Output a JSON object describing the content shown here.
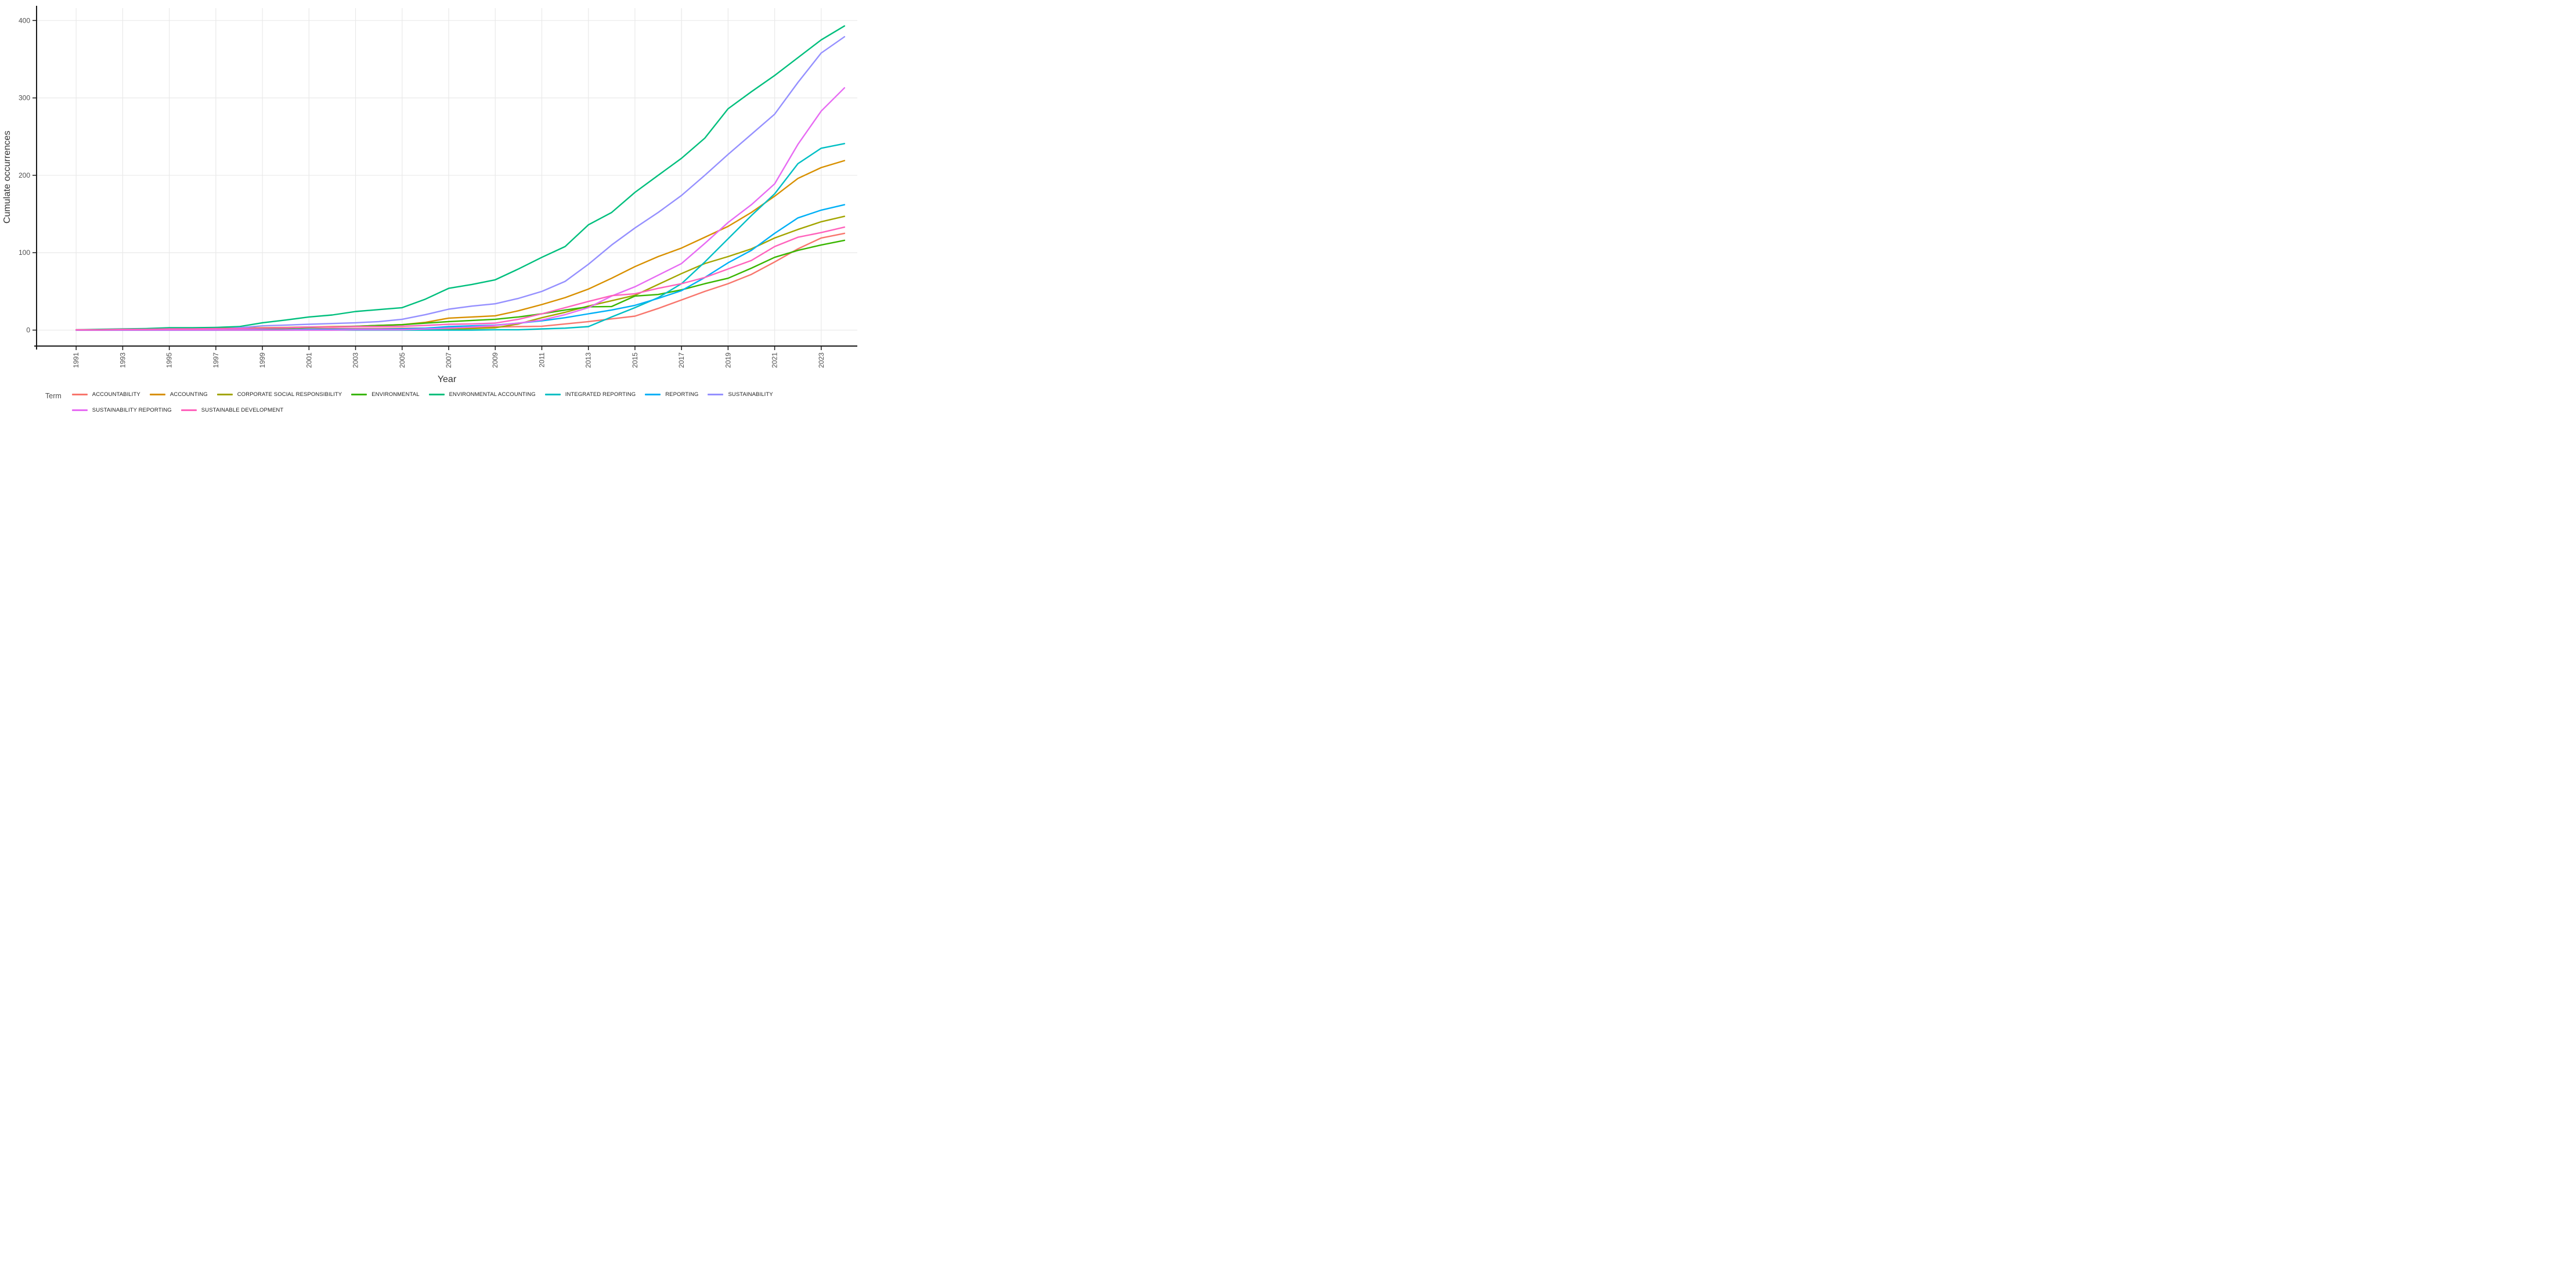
{
  "page": {
    "background": "#ffffff"
  },
  "chart_data": {
    "type": "line",
    "title": "",
    "xlabel": "Year",
    "ylabel": "Cumulate occurrences",
    "legend_title": "Term",
    "legend_position": "bottom",
    "grid": true,
    "axis_color": "#1a1a1a",
    "grid_color": "#e9e9e9",
    "tick_label_color": "#4d4d4d",
    "x": [
      1991,
      1992,
      1993,
      1994,
      1995,
      1996,
      1997,
      1998,
      1999,
      2000,
      2001,
      2002,
      2003,
      2004,
      2005,
      2006,
      2007,
      2008,
      2009,
      2010,
      2011,
      2012,
      2013,
      2014,
      2015,
      2016,
      2017,
      2018,
      2019,
      2020,
      2021,
      2022,
      2023,
      2024
    ],
    "x_ticks": [
      1991,
      1993,
      1995,
      1997,
      1999,
      2001,
      2003,
      2005,
      2007,
      2009,
      2011,
      2013,
      2015,
      2017,
      2019,
      2021,
      2023
    ],
    "y_ticks": [
      0,
      100,
      200,
      300,
      400
    ],
    "xlim": [
      1989.3,
      2024.55
    ],
    "ylim": [
      -20.6,
      416
    ],
    "series": [
      {
        "name": "ACCOUNTABILITY",
        "color": "#F8766D",
        "values": [
          0,
          0,
          0.5,
          0.5,
          0.5,
          0.5,
          0.5,
          1,
          1,
          1,
          1.5,
          2,
          2,
          2,
          2.5,
          2.5,
          3,
          3.5,
          4,
          4.5,
          5,
          8,
          11,
          14.5,
          18,
          28,
          39,
          50,
          60,
          72,
          88,
          105,
          119,
          125
        ]
      },
      {
        "name": "ACCOUNTING",
        "color": "#D89000",
        "values": [
          0,
          0.5,
          0.5,
          1,
          2,
          2.5,
          2.5,
          2.5,
          3,
          3.5,
          4,
          4.5,
          5,
          6,
          7,
          10,
          15.5,
          17,
          18.5,
          25,
          33,
          42,
          53,
          67,
          82,
          95,
          106,
          120,
          134,
          152,
          173,
          196,
          210,
          219
        ]
      },
      {
        "name": "CORPORATE SOCIAL RESPONSIBILITY",
        "color": "#A3A500",
        "values": [
          0,
          0,
          0,
          0,
          0,
          0,
          0,
          0,
          0,
          0,
          0.5,
          0.5,
          0.5,
          0.5,
          0.5,
          1,
          1,
          2,
          3,
          8,
          16,
          23,
          31,
          38,
          45,
          59,
          73,
          86,
          95,
          105,
          119,
          130,
          140,
          147
        ]
      },
      {
        "name": "ENVIRONMENTAL",
        "color": "#39B600",
        "values": [
          0,
          0,
          0.5,
          0.5,
          1,
          1,
          1.5,
          1.5,
          1.5,
          2.5,
          3.5,
          4,
          5,
          6,
          7,
          9,
          11,
          12.5,
          14,
          17,
          21,
          26,
          30,
          30.5,
          44,
          46,
          52,
          60,
          67,
          80,
          94,
          103,
          110,
          116
        ]
      },
      {
        "name": "ENVIRONMENTAL ACCOUNTING",
        "color": "#00BF7D",
        "values": [
          0.5,
          1,
          1.5,
          2,
          3,
          3,
          3.5,
          4.5,
          9.5,
          13,
          17,
          19.5,
          24,
          26.5,
          29,
          40,
          54,
          59,
          65,
          79,
          94,
          108,
          136,
          152,
          178,
          200,
          222,
          248,
          286,
          308,
          329,
          352,
          375,
          393
        ]
      },
      {
        "name": "INTEGRATED REPORTING",
        "color": "#00BFC4",
        "values": [
          0,
          0,
          0,
          0,
          0,
          0,
          0,
          0,
          0,
          0,
          0,
          0,
          0,
          0,
          0,
          0,
          0,
          0,
          0.5,
          0.5,
          1.5,
          2.5,
          4.5,
          17,
          29,
          42,
          60,
          88,
          118,
          148,
          176,
          215,
          235,
          241
        ]
      },
      {
        "name": "REPORTING",
        "color": "#00B0F6",
        "values": [
          0,
          0,
          0,
          0,
          0,
          0,
          0,
          0.5,
          0.5,
          0.5,
          1,
          1,
          1,
          1,
          1.5,
          2.5,
          4.5,
          5.5,
          6.5,
          9,
          12,
          16,
          21,
          26,
          32,
          41,
          51,
          68,
          87,
          103,
          125,
          145,
          155,
          162
        ]
      },
      {
        "name": "SUSTAINABILITY",
        "color": "#9590FF",
        "values": [
          0,
          0,
          0.5,
          0.5,
          0.5,
          1,
          1,
          3,
          5.5,
          6.5,
          7.5,
          8.5,
          9.5,
          11,
          14,
          20,
          27,
          31,
          34,
          41,
          50,
          63,
          85,
          110,
          132,
          152,
          174,
          200,
          227,
          253,
          279,
          320,
          358,
          379
        ]
      },
      {
        "name": "SUSTAINABILITY REPORTING",
        "color": "#E76BF3",
        "values": [
          0,
          0,
          0,
          0,
          0,
          0,
          0,
          0,
          0,
          0,
          0,
          0,
          0.5,
          0.5,
          0.5,
          1.5,
          2.5,
          4,
          6,
          9,
          13,
          20,
          29,
          44,
          56,
          71,
          86,
          112,
          139,
          162,
          189,
          240,
          283,
          313
        ]
      },
      {
        "name": "SUSTAINABLE DEVELOPMENT",
        "color": "#FF62BC",
        "values": [
          0.5,
          0.5,
          1,
          1,
          1.5,
          1.5,
          2,
          2,
          2.5,
          3,
          4,
          4,
          4.5,
          4.5,
          5,
          6,
          7.5,
          8,
          9,
          14,
          21,
          29,
          37,
          44.5,
          47,
          54,
          60,
          68,
          79,
          90,
          108,
          120,
          126,
          133
        ]
      }
    ]
  }
}
